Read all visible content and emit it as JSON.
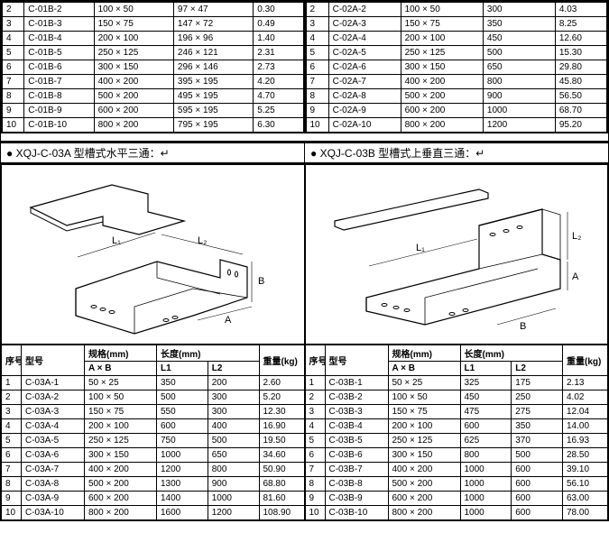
{
  "top_left_table": {
    "rows": [
      [
        "2",
        "C-01B-2",
        "100 × 50",
        "97 × 47",
        "0.30"
      ],
      [
        "3",
        "C-01B-3",
        "150 × 75",
        "147 × 72",
        "0.49"
      ],
      [
        "4",
        "C-01B-4",
        "200 × 100",
        "196 × 96",
        "1.40"
      ],
      [
        "5",
        "C-01B-5",
        "250 × 125",
        "246 × 121",
        "2.31"
      ],
      [
        "6",
        "C-01B-6",
        "300 × 150",
        "296 × 146",
        "2.73"
      ],
      [
        "7",
        "C-01B-7",
        "400 × 200",
        "395 × 195",
        "4.20"
      ],
      [
        "8",
        "C-01B-8",
        "500 × 200",
        "495 × 195",
        "4.70"
      ],
      [
        "9",
        "C-01B-9",
        "600 × 200",
        "595 × 195",
        "5.25"
      ],
      [
        "10",
        "C-01B-10",
        "800 × 200",
        "795 × 195",
        "6.30"
      ]
    ],
    "col_widths": [
      "22px",
      "70px",
      "80px",
      "80px",
      "50px"
    ]
  },
  "top_right_table": {
    "rows": [
      [
        "2",
        "C-02A-2",
        "100 × 50",
        "300",
        "4.03"
      ],
      [
        "3",
        "C-02A-3",
        "150 × 75",
        "350",
        "8.25"
      ],
      [
        "4",
        "C-02A-4",
        "200 × 100",
        "450",
        "12.60"
      ],
      [
        "5",
        "C-02A-5",
        "250 × 125",
        "500",
        "15.30"
      ],
      [
        "6",
        "C-02A-6",
        "300 × 150",
        "650",
        "29.80"
      ],
      [
        "7",
        "C-02A-7",
        "400 × 200",
        "800",
        "45.80"
      ],
      [
        "8",
        "C-02A-8",
        "500 × 200",
        "900",
        "56.50"
      ],
      [
        "9",
        "C-02A-9",
        "600 × 200",
        "1000",
        "68.70"
      ],
      [
        "10",
        "C-02A-10",
        "800 × 200",
        "1200",
        "95.20"
      ]
    ],
    "col_widths": [
      "22px",
      "70px",
      "80px",
      "70px",
      "50px"
    ]
  },
  "section_labels": {
    "left": "● XQJ-C-03A 型槽式水平三通：↵",
    "right": "● XQJ-C-03B 型槽式上垂直三通：↵"
  },
  "headers": {
    "idx": "序号",
    "model": "型号",
    "spec": "规格(mm)",
    "spec_sub": "A × B",
    "length": "长度(mm)",
    "L1": "L1",
    "L2": "L2",
    "weight": "重量(kg)"
  },
  "bottom_left_table": {
    "rows": [
      [
        "1",
        "C-03A-1",
        "50 × 25",
        "350",
        "200",
        "2.60"
      ],
      [
        "2",
        "C-03A-2",
        "100 × 50",
        "500",
        "300",
        "5.20"
      ],
      [
        "3",
        "C-03A-3",
        "150 × 75",
        "550",
        "300",
        "12.30"
      ],
      [
        "4",
        "C-03A-4",
        "200 × 100",
        "600",
        "400",
        "16.90"
      ],
      [
        "5",
        "C-03A-5",
        "250 × 125",
        "750",
        "500",
        "19.50"
      ],
      [
        "6",
        "C-03A-6",
        "300 × 150",
        "1000",
        "650",
        "34.60"
      ],
      [
        "7",
        "C-03A-7",
        "400 × 200",
        "1200",
        "800",
        "50.90"
      ],
      [
        "8",
        "C-03A-8",
        "500 × 200",
        "1300",
        "900",
        "68.80"
      ],
      [
        "9",
        "C-03A-9",
        "600 × 200",
        "1400",
        "1000",
        "81.60"
      ],
      [
        "10",
        "C-03A-10",
        "800 × 200",
        "1600",
        "1200",
        "108.90"
      ]
    ]
  },
  "bottom_right_table": {
    "rows": [
      [
        "1",
        "C-03B-1",
        "50 × 25",
        "325",
        "175",
        "2.13"
      ],
      [
        "2",
        "C-03B-2",
        "100 × 50",
        "450",
        "250",
        "4.02"
      ],
      [
        "3",
        "C-03B-3",
        "150 × 75",
        "475",
        "275",
        "12.04"
      ],
      [
        "4",
        "C-03B-4",
        "200 × 100",
        "600",
        "350",
        "14.00"
      ],
      [
        "5",
        "C-03B-5",
        "250 × 125",
        "625",
        "370",
        "16.93"
      ],
      [
        "6",
        "C-03B-6",
        "300 × 150",
        "800",
        "500",
        "28.50"
      ],
      [
        "7",
        "C-03B-7",
        "400 × 200",
        "1000",
        "600",
        "39.10"
      ],
      [
        "8",
        "C-03B-8",
        "500 × 200",
        "1000",
        "600",
        "56.10"
      ],
      [
        "9",
        "C-03B-9",
        "600 × 200",
        "1000",
        "600",
        "63.00"
      ],
      [
        "10",
        "C-03B-10",
        "800 × 200",
        "1000",
        "600",
        "78.00"
      ]
    ]
  },
  "diagram": {
    "stroke": "#000000",
    "fill": "#ffffff",
    "labels": {
      "L1": "L₁",
      "L2": "L₂",
      "A": "A",
      "B": "B"
    },
    "font_size": 11
  },
  "colors": {
    "border": "#000000",
    "bg": "#ffffff",
    "text": "#000000"
  }
}
